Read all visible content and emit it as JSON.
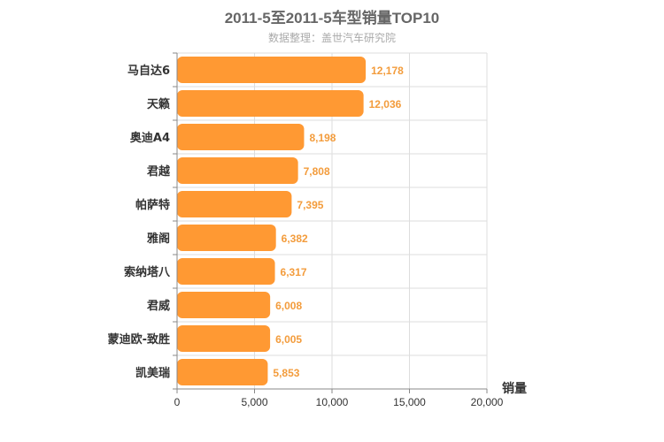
{
  "chart_data": {
    "type": "bar",
    "orientation": "horizontal",
    "title": "2011-5至2011-5车型销量TOP10",
    "subtitle": "数据整理：盖世汽车研究院",
    "xlabel": "销量",
    "ylabel": "",
    "categories": [
      "马自达6",
      "天籁",
      "奥迪A4",
      "君越",
      "帕萨特",
      "雅阁",
      "索纳塔八",
      "君威",
      "蒙迪欧-致胜",
      "凯美瑞"
    ],
    "values": [
      12178,
      12036,
      8198,
      7808,
      7395,
      6382,
      6317,
      6008,
      6005,
      5853
    ],
    "value_labels": [
      "12,178",
      "12,036",
      "8,198",
      "7,808",
      "7,395",
      "6,382",
      "6,317",
      "6,008",
      "6,005",
      "5,853"
    ],
    "xlim": [
      0,
      20000
    ],
    "xticks": [
      0,
      5000,
      10000,
      15000,
      20000
    ],
    "xtick_labels": [
      "0",
      "5,000",
      "10,000",
      "15,000",
      "20,000"
    ],
    "grid": true,
    "legend": "none",
    "bar_color": "#ff9933",
    "value_label_color": "#f39c3c"
  }
}
